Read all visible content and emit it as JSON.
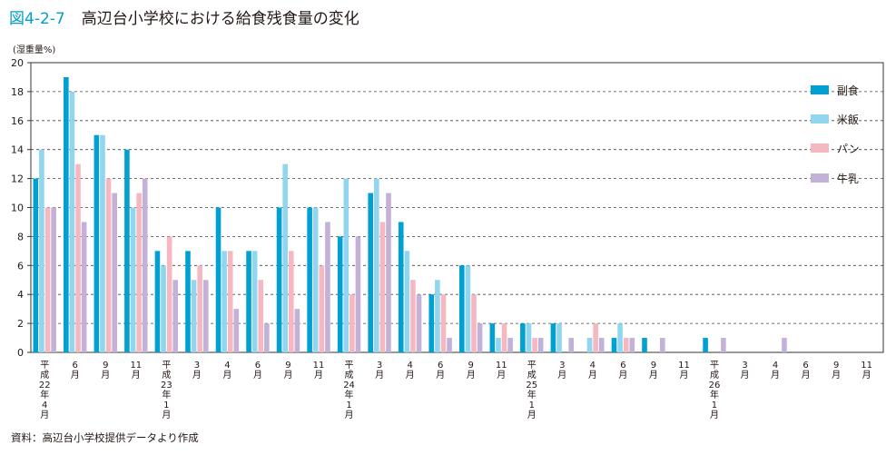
{
  "header": {
    "figure_number": "図4-2-7",
    "title": "高辺台小学校における給食残食量の変化"
  },
  "unit_label": "(湿重量%)",
  "source_note": "資料：高辺台小学校提供データより作成",
  "colors": {
    "副食": "#00a0d2",
    "米飯": "#8fd6ee",
    "パン": "#f5b8c0",
    "牛乳": "#c3b1d8",
    "grid": "#444444"
  },
  "chart_data": {
    "type": "bar",
    "title": "高辺台小学校における給食残食量の変化",
    "ylabel": "(湿重量%)",
    "xlabel": "",
    "ylim": [
      0,
      20
    ],
    "yticks": [
      0,
      2,
      4,
      6,
      8,
      10,
      12,
      14,
      16,
      18,
      20
    ],
    "grid": true,
    "legend": "right",
    "categories": [
      "平成22年4月",
      "6月",
      "9月",
      "11月",
      "平成23年1月",
      "3月",
      "4月",
      "6月",
      "9月",
      "11月",
      "平成24年1月",
      "3月",
      "4月",
      "6月",
      "9月",
      "11月",
      "平成25年1月",
      "3月",
      "4月",
      "6月",
      "9月",
      "11月",
      "平成26年1月",
      "3月",
      "4月",
      "6月",
      "9月",
      "11月"
    ],
    "x_labels": [
      [
        "平",
        "成",
        "22",
        "年",
        "4",
        "月"
      ],
      [
        "6",
        "月"
      ],
      [
        "9",
        "月"
      ],
      [
        "11",
        "月"
      ],
      [
        "平",
        "成",
        "23",
        "年",
        "1",
        "月"
      ],
      [
        "3",
        "月"
      ],
      [
        "4",
        "月"
      ],
      [
        "6",
        "月"
      ],
      [
        "9",
        "月"
      ],
      [
        "11",
        "月"
      ],
      [
        "平",
        "成",
        "24",
        "年",
        "1",
        "月"
      ],
      [
        "3",
        "月"
      ],
      [
        "4",
        "月"
      ],
      [
        "6",
        "月"
      ],
      [
        "9",
        "月"
      ],
      [
        "11",
        "月"
      ],
      [
        "平",
        "成",
        "25",
        "年",
        "1",
        "月"
      ],
      [
        "3",
        "月"
      ],
      [
        "4",
        "月"
      ],
      [
        "6",
        "月"
      ],
      [
        "9",
        "月"
      ],
      [
        "11",
        "月"
      ],
      [
        "平",
        "成",
        "26",
        "年",
        "1",
        "月"
      ],
      [
        "3",
        "月"
      ],
      [
        "4",
        "月"
      ],
      [
        "6",
        "月"
      ],
      [
        "9",
        "月"
      ],
      [
        "11",
        "月"
      ]
    ],
    "series": [
      {
        "name": "副食",
        "values": [
          12,
          19,
          15,
          14,
          7,
          7,
          10,
          7,
          10,
          10,
          8,
          11,
          9,
          4,
          6,
          2,
          2,
          2,
          0,
          1,
          1,
          0,
          1,
          0,
          0,
          0,
          0,
          0
        ]
      },
      {
        "name": "米飯",
        "values": [
          14,
          18,
          15,
          10,
          6,
          5,
          7,
          7,
          13,
          10,
          12,
          12,
          7,
          5,
          6,
          1,
          2,
          2,
          1,
          2,
          0,
          0,
          0,
          0,
          0,
          0,
          0,
          0
        ]
      },
      {
        "name": "パン",
        "values": [
          10,
          13,
          12,
          11,
          8,
          6,
          7,
          5,
          7,
          6,
          4,
          9,
          5,
          4,
          4,
          2,
          1,
          0,
          2,
          1,
          0,
          0,
          0,
          0,
          0,
          0,
          0,
          0
        ]
      },
      {
        "name": "牛乳",
        "values": [
          10,
          9,
          11,
          12,
          5,
          5,
          3,
          2,
          3,
          9,
          8,
          11,
          4,
          1,
          2,
          1,
          1,
          1,
          1,
          1,
          1,
          0,
          1,
          0,
          1,
          0,
          0,
          0
        ]
      }
    ]
  }
}
